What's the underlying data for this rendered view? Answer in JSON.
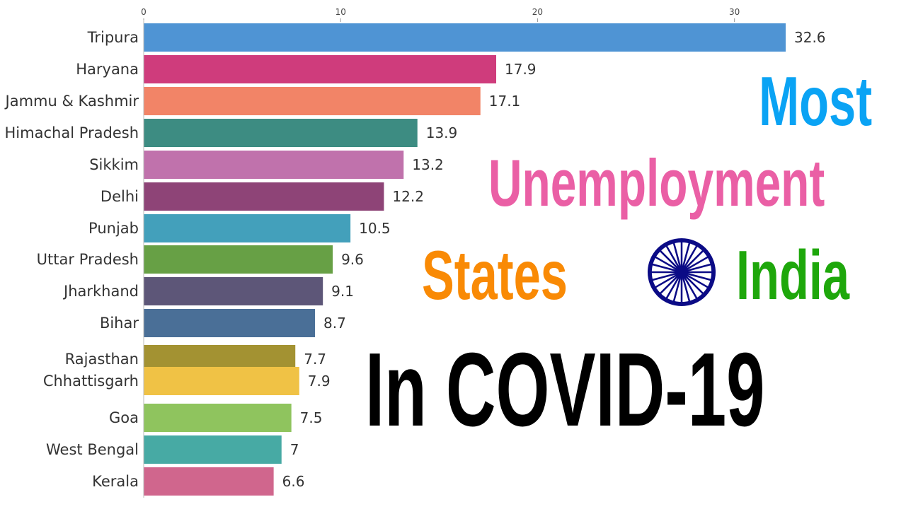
{
  "chart_data": {
    "type": "bar",
    "orientation": "horizontal",
    "categories": [
      "Tripura",
      "Haryana",
      "Jammu & Kashmir",
      "Himachal Pradesh",
      "Sikkim",
      "Delhi",
      "Punjab",
      "Uttar Pradesh",
      "Jharkhand",
      "Bihar",
      "Rajasthan",
      "Chhattisgarh",
      "Goa",
      "West Bengal",
      "Kerala"
    ],
    "values": [
      32.6,
      17.9,
      17.1,
      13.9,
      13.2,
      12.2,
      10.5,
      9.6,
      9.1,
      8.7,
      7.7,
      7.9,
      7.5,
      7,
      6.6
    ],
    "value_labels": [
      "32.6",
      "17.9",
      "17.1",
      "13.9",
      "13.2",
      "12.2",
      "10.5",
      "9.6",
      "9.1",
      "8.7",
      "7.7",
      "7.9",
      "7.5",
      "7",
      "6.6"
    ],
    "colors": [
      "#4f94d4",
      "#cf3c7c",
      "#f28467",
      "#3d8c82",
      "#c072ac",
      "#8e4477",
      "#43a0bb",
      "#67a045",
      "#5d5678",
      "#4a6f97",
      "#a39232",
      "#f0c245",
      "#8fc45e",
      "#47aaa4",
      "#d0668d"
    ],
    "x_ticks": [
      0,
      10,
      20,
      30
    ],
    "x_tick_labels": [
      "0",
      "10",
      "20",
      "30"
    ],
    "xlim": [
      0,
      32.6
    ],
    "title": "",
    "xlabel": "",
    "ylabel": "",
    "grid": false,
    "axis_position": "top"
  },
  "headline": {
    "most": "Most",
    "unemployment": "Unemployment",
    "states": "States",
    "india": "India",
    "covid": "In COVID-19"
  },
  "colors": {
    "most": "#0aa3f4",
    "unemployment": "#ea5fa5",
    "states": "#f98a05",
    "india": "#1ea70b",
    "covid": "#000000",
    "chakra": "#0b0b86"
  },
  "icons": {
    "chakra": "ashoka-chakra-icon"
  }
}
